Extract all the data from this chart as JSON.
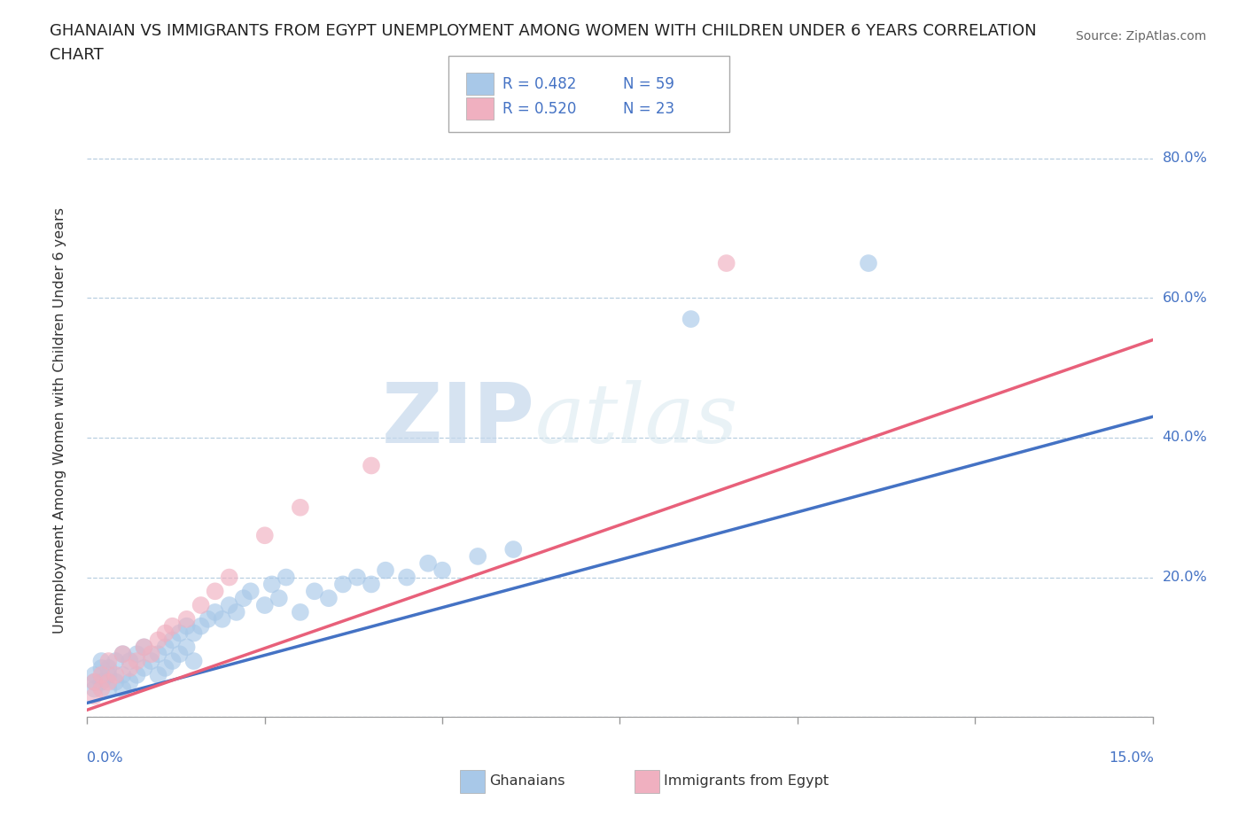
{
  "title_line1": "GHANAIAN VS IMMIGRANTS FROM EGYPT UNEMPLOYMENT AMONG WOMEN WITH CHILDREN UNDER 6 YEARS CORRELATION",
  "title_line2": "CHART",
  "source": "Source: ZipAtlas.com",
  "ylabel": "Unemployment Among Women with Children Under 6 years",
  "blue_color": "#a8c8e8",
  "pink_color": "#f0b0c0",
  "blue_line_color": "#4472c4",
  "pink_line_color": "#e8607a",
  "legend_color": "#4472c4",
  "R1": 0.482,
  "N1": 59,
  "R2": 0.52,
  "N2": 23,
  "watermark_zip": "ZIP",
  "watermark_atlas": "atlas",
  "xlim": [
    0,
    0.15
  ],
  "ylim": [
    0,
    0.85
  ],
  "ytick_vals": [
    0.0,
    0.2,
    0.4,
    0.6,
    0.8
  ],
  "ytick_labels": [
    "",
    "20.0%",
    "40.0%",
    "60.0%",
    "80.0%"
  ],
  "xtick_label_left": "0.0%",
  "xtick_label_right": "15.0%",
  "bottom_legend_label1": "Ghanaians",
  "bottom_legend_label2": "Immigrants from Egypt",
  "ghanaian_x": [
    0.001,
    0.001,
    0.001,
    0.002,
    0.002,
    0.002,
    0.003,
    0.003,
    0.003,
    0.004,
    0.004,
    0.005,
    0.005,
    0.005,
    0.006,
    0.006,
    0.007,
    0.007,
    0.008,
    0.008,
    0.009,
    0.01,
    0.01,
    0.011,
    0.011,
    0.012,
    0.012,
    0.013,
    0.013,
    0.014,
    0.014,
    0.015,
    0.015,
    0.016,
    0.017,
    0.018,
    0.019,
    0.02,
    0.021,
    0.022,
    0.023,
    0.025,
    0.026,
    0.027,
    0.028,
    0.03,
    0.032,
    0.034,
    0.036,
    0.038,
    0.04,
    0.042,
    0.045,
    0.048,
    0.05,
    0.055,
    0.06,
    0.085,
    0.11
  ],
  "ghanaian_y": [
    0.04,
    0.05,
    0.06,
    0.05,
    0.07,
    0.08,
    0.04,
    0.06,
    0.07,
    0.05,
    0.08,
    0.04,
    0.06,
    0.09,
    0.05,
    0.08,
    0.06,
    0.09,
    0.07,
    0.1,
    0.08,
    0.06,
    0.09,
    0.07,
    0.1,
    0.08,
    0.11,
    0.09,
    0.12,
    0.1,
    0.13,
    0.08,
    0.12,
    0.13,
    0.14,
    0.15,
    0.14,
    0.16,
    0.15,
    0.17,
    0.18,
    0.16,
    0.19,
    0.17,
    0.2,
    0.15,
    0.18,
    0.17,
    0.19,
    0.2,
    0.19,
    0.21,
    0.2,
    0.22,
    0.21,
    0.23,
    0.24,
    0.57,
    0.65
  ],
  "egypt_x": [
    0.001,
    0.001,
    0.002,
    0.002,
    0.003,
    0.003,
    0.004,
    0.005,
    0.006,
    0.007,
    0.008,
    0.009,
    0.01,
    0.011,
    0.012,
    0.014,
    0.016,
    0.018,
    0.02,
    0.025,
    0.03,
    0.04,
    0.09
  ],
  "egypt_y": [
    0.03,
    0.05,
    0.04,
    0.06,
    0.05,
    0.08,
    0.06,
    0.09,
    0.07,
    0.08,
    0.1,
    0.09,
    0.11,
    0.12,
    0.13,
    0.14,
    0.16,
    0.18,
    0.2,
    0.26,
    0.3,
    0.36,
    0.65
  ],
  "blue_line_x0": 0.0,
  "blue_line_y0": 0.02,
  "blue_line_x1": 0.15,
  "blue_line_y1": 0.43,
  "pink_line_x0": 0.0,
  "pink_line_y0": 0.01,
  "pink_line_x1": 0.15,
  "pink_line_y1": 0.54
}
